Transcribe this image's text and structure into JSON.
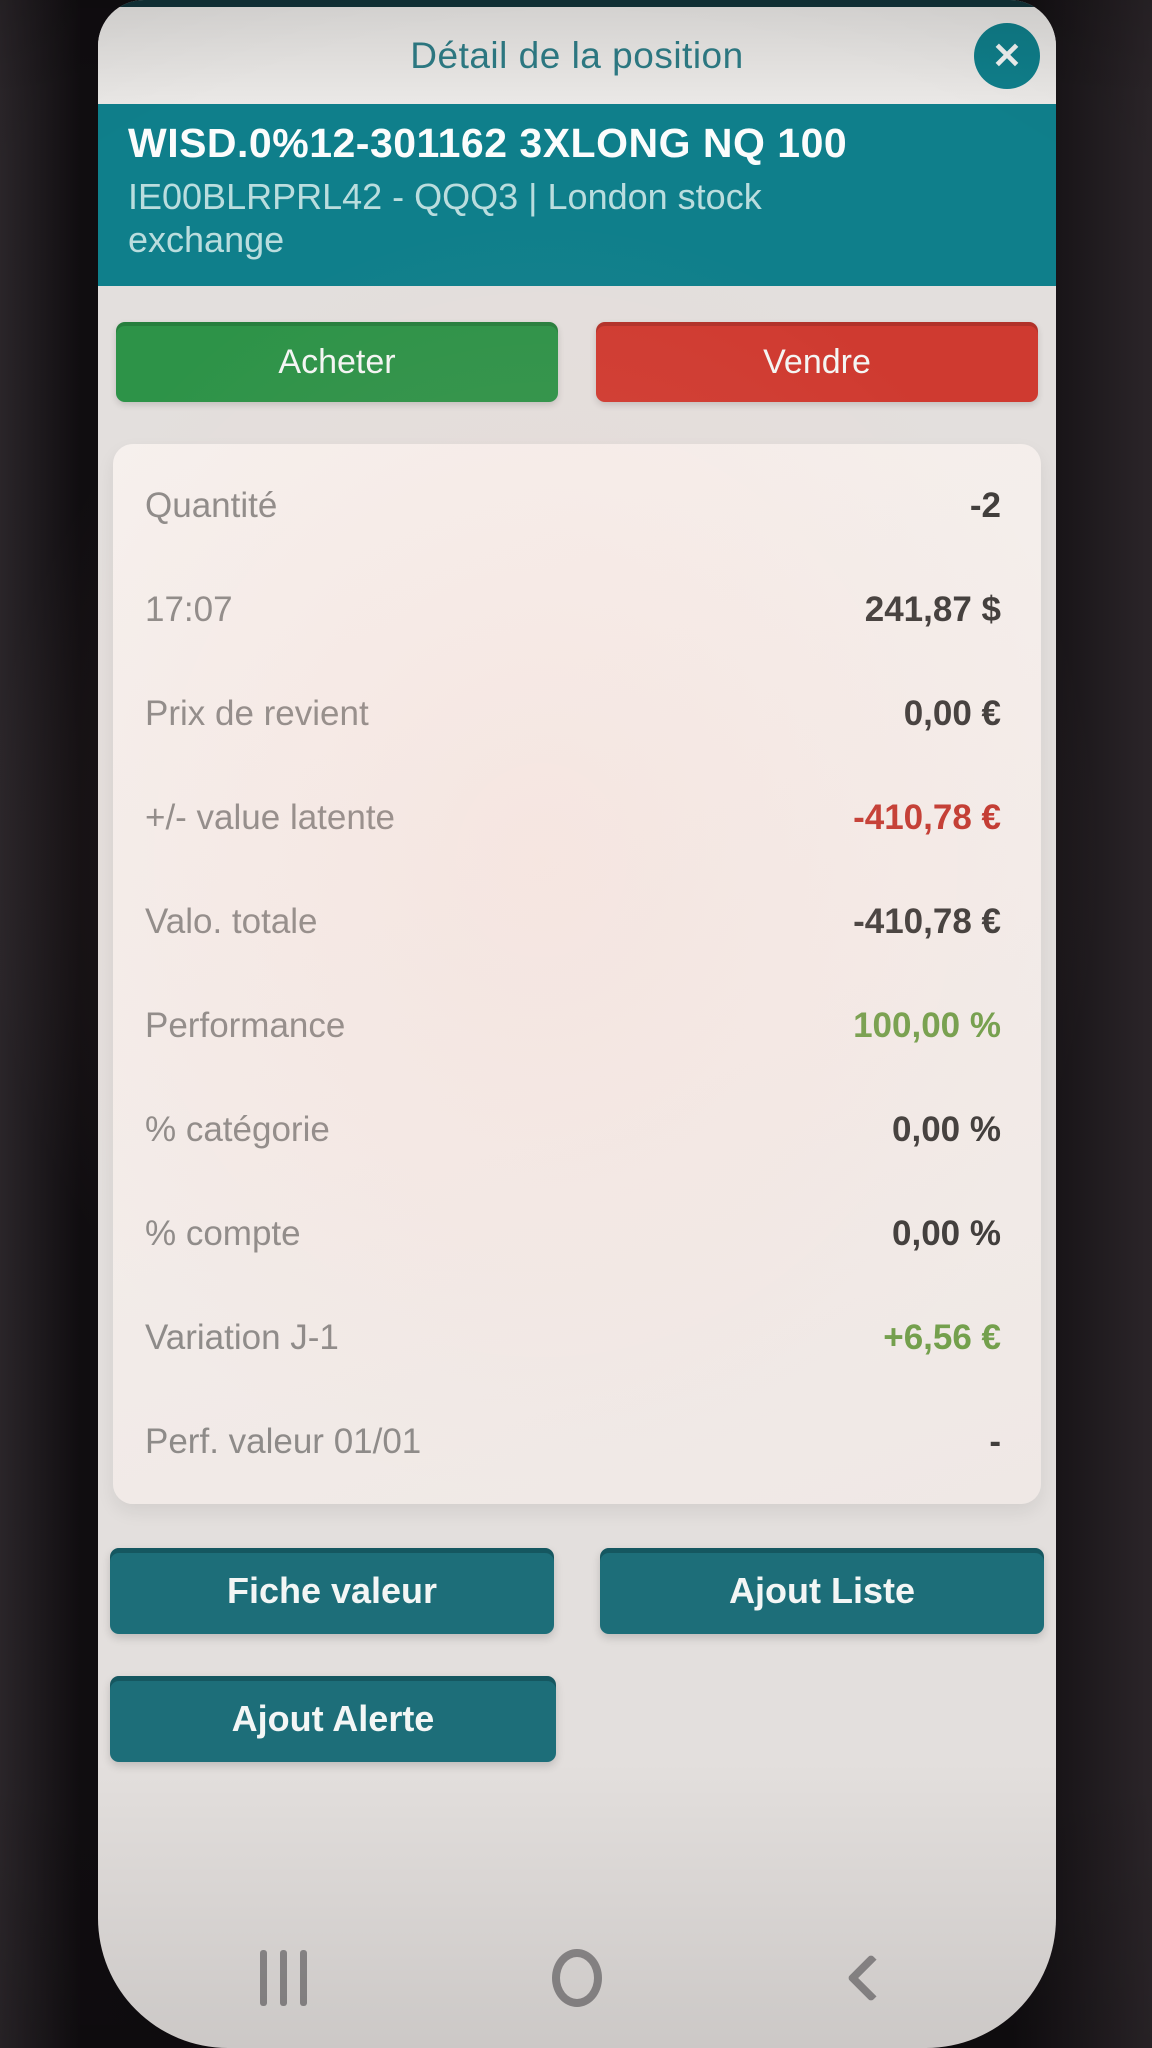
{
  "colors": {
    "teal_banner": "#0f7f8b",
    "teal_title": "#2e7c86",
    "teal_action_button": "#1d6e79",
    "buy_green": "#2d9348",
    "sell_red": "#cf3a30",
    "value_negative_red": "#c23a31",
    "value_positive_green": "#74a04d",
    "label_gray": "#8e8b89",
    "value_dark": "#413e3c"
  },
  "dialog": {
    "title": "Détail de la position",
    "close_glyph": "✕"
  },
  "instrument": {
    "name": "WISD.0%12-301162 3XLONG NQ 100",
    "isin_line": "IE00BLRPRL42 - QQQ3 | London stock exchange"
  },
  "trade": {
    "buy_label": "Acheter",
    "sell_label": "Vendre"
  },
  "position": {
    "rows": [
      {
        "label": "Quantité",
        "value": "-2",
        "tone": "dark"
      },
      {
        "label": "17:07",
        "value": "241,87 $",
        "tone": "dark"
      },
      {
        "label": "Prix de revient",
        "value": "0,00 €",
        "tone": "dark"
      },
      {
        "label": "+/- value latente",
        "value": "-410,78 €",
        "tone": "red"
      },
      {
        "label": "Valo. totale",
        "value": "-410,78 €",
        "tone": "dark"
      },
      {
        "label": "Performance",
        "value": "100,00 %",
        "tone": "green"
      },
      {
        "label": "% catégorie",
        "value": "0,00 %",
        "tone": "dark"
      },
      {
        "label": "% compte",
        "value": "0,00 %",
        "tone": "dark"
      },
      {
        "label": "Variation J-1",
        "value": "+6,56 €",
        "tone": "green"
      },
      {
        "label": "Perf. valeur 01/01",
        "value": "-",
        "tone": "dark"
      }
    ]
  },
  "actions": {
    "fiche_label": "Fiche valeur",
    "liste_label": "Ajout Liste",
    "alerte_label": "Ajout Alerte"
  }
}
